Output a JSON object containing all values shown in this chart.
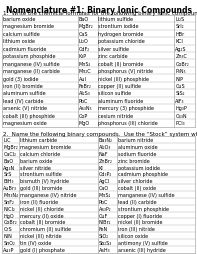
{
  "title": "Nomenclature #1: Binary Ionic Compounds",
  "section1_header": "1.  Write the chemical formulas for the following binary ionic compounds:",
  "section1_rows": [
    [
      "barium oxide",
      "BaO",
      "lithium sulfide",
      "Li₂S"
    ],
    [
      "magnesium bromide",
      "MgBr₂",
      "strontium iodide",
      "SrI₂"
    ],
    [
      "calcium sulfide",
      "CaS",
      "hydrogen bromide",
      "HBr"
    ],
    [
      "lithium oxide",
      "Li₂O",
      "potassium chloride",
      "KCl"
    ],
    [
      "cadmium fluoride",
      "CdF₂",
      "silver sulfide",
      "Ag₂S"
    ],
    [
      "potassium phosphide",
      "K₃P",
      "zinc carbide",
      "Zn₃C"
    ],
    [
      "manganese (IV) sulfide",
      "MnS₂",
      "cobalt (II) bromide",
      "CoBr₂"
    ],
    [
      "manganese (II) carbide",
      "Mn₂C",
      "phosphorus (V) nitride",
      "P₃N₅"
    ],
    [
      "gold (3) iodide",
      "AuI",
      "nickel (III) phosphide",
      "NiP"
    ],
    [
      "iron (II) bromide",
      "FeBr₂",
      "copper (II) sulfide",
      "CuS"
    ],
    [
      "aluminum sulfide",
      "Al₂S₃",
      "silicon sulfide",
      "SiS₂"
    ],
    [
      "lead (IV) carbide",
      "PbC",
      "aluminum fluoride",
      "AlF₃"
    ],
    [
      "arsenic (V) nitride",
      "As₃N₅",
      "mercury (3) phosphide",
      "Hg₃P"
    ],
    [
      "cobalt (III) phosphide",
      "CoP",
      "cesium nitride",
      "Cs₃N"
    ],
    [
      "magnesium oxide",
      "MgO",
      "phosphorus (III) chloride",
      "PCl₃"
    ]
  ],
  "section2_header": "2.  Name the following binary compounds.  Use the “Stock” system where necessary.",
  "section2_rows": [
    [
      "LiC",
      "lithium carbide",
      "Ba₃N₂",
      "barium nitride"
    ],
    [
      "MgBr₂",
      "magnesium bromide",
      "Al₂O₃",
      "aluminum oxide"
    ],
    [
      "CaCl₂",
      "calcium chloride",
      "NaF",
      "sodium fluoride"
    ],
    [
      "BaO",
      "barium oxide",
      "ZnBr₂",
      "zinc bromide"
    ],
    [
      "Ag₃N",
      "silver nitride",
      "KI",
      "potassium iodide"
    ],
    [
      "SrS",
      "strontium sulfide",
      "Cd₃P₂",
      "cadmium phosphide"
    ],
    [
      "BiH₃",
      "bismuth (V) hydride",
      "AgCl",
      "silver chloride"
    ],
    [
      "AuBr₃",
      "gold (III) bromide",
      "CaO",
      "cobalt (II) oxide"
    ],
    [
      "Mn₃N₄",
      "manganese (IV) nitride",
      "MnS₂",
      "manganese (IV) sulfide"
    ],
    [
      "SnF₂",
      "iron (II) fluoride",
      "PbC",
      "lead (II) carbide"
    ],
    [
      "NiCl₂",
      "nickel (II) chloride",
      "As₃P₂",
      "strontium phosphide"
    ],
    [
      "HgO",
      "mercury (II) oxide",
      "CuF",
      "copper (I) fluoride"
    ],
    [
      "CoBr₂",
      "cobalt (II) bromide",
      "NiBr₂",
      "nickel (II) bromide"
    ],
    [
      "CrS",
      "chromium (II) sulfide",
      "FeN",
      "iron (III) nitride"
    ],
    [
      "NiN",
      "nickel (III) nitride",
      "SiO₂",
      "silicon oxide"
    ],
    [
      "SnO₂",
      "tin (IV) oxide",
      "Sb₂S₃",
      "antimony (V) sulfide"
    ],
    [
      "Au₃P",
      "gold (I) phosphate",
      "AsH₃",
      "arsenic (III) hydride"
    ]
  ],
  "bg_color": "#ffffff",
  "text_color": "#000000",
  "line_color": "#aaaaaa",
  "title_fontsize": 5.5,
  "header_fontsize": 4.0,
  "cell_fontsize": 3.5,
  "fig_width": 1.97,
  "fig_height": 2.55,
  "dpi": 100
}
